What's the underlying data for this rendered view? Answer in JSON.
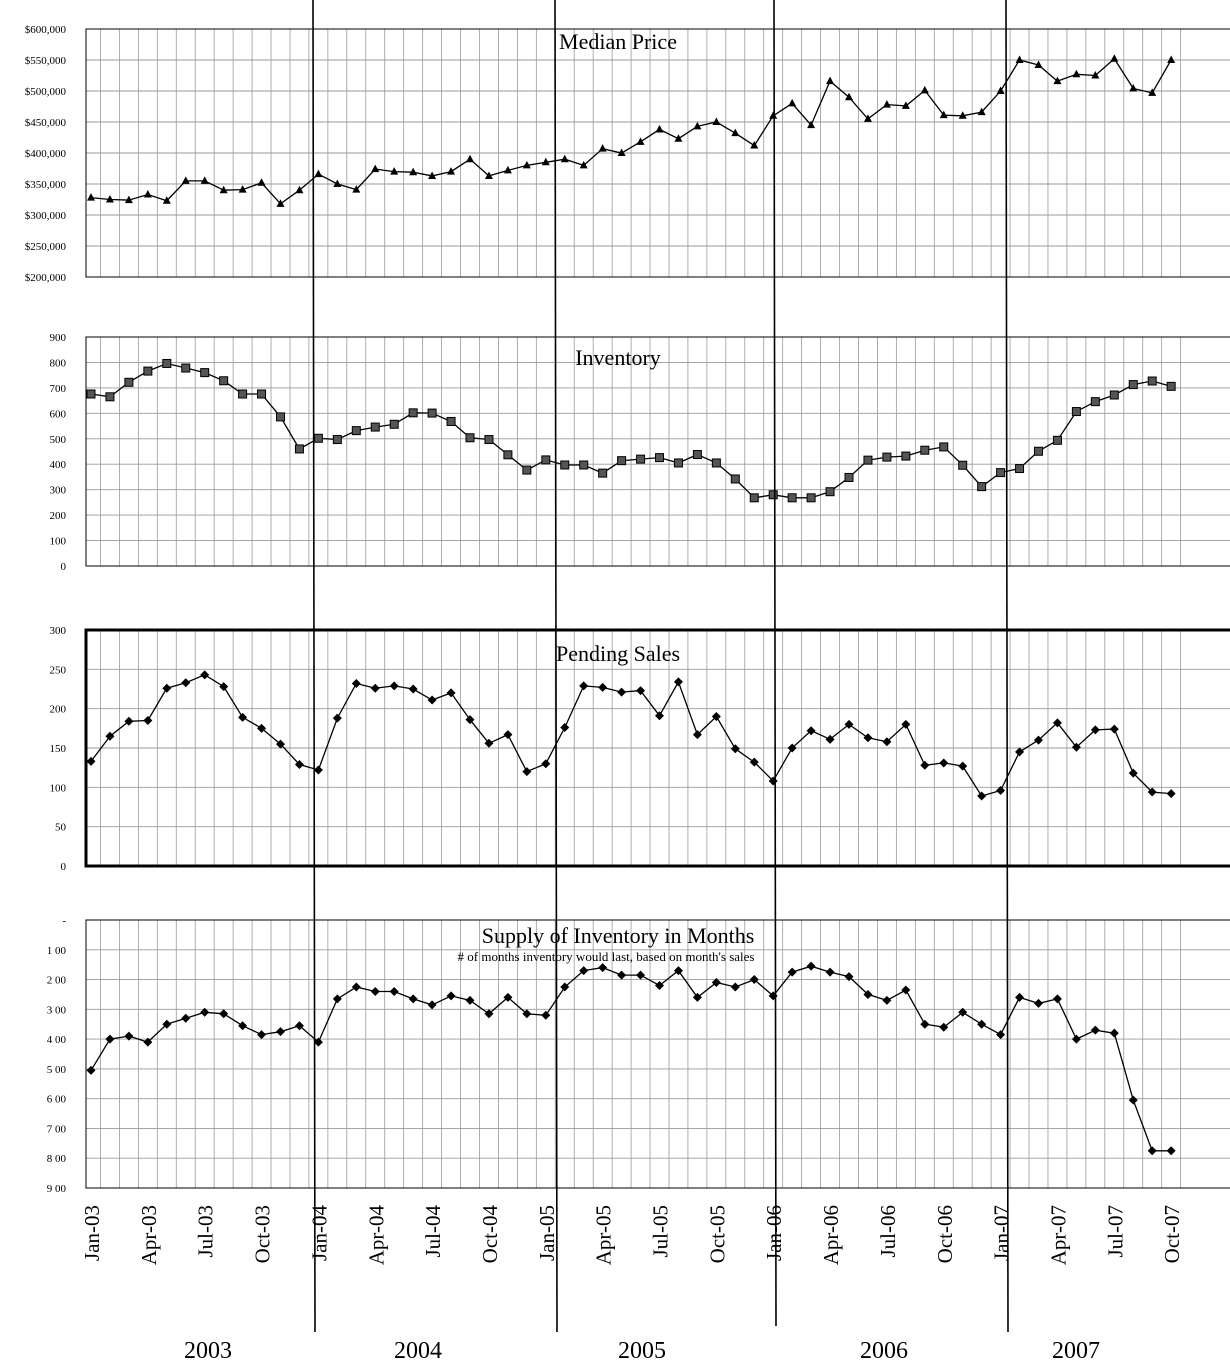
{
  "chart_data": [
    {
      "type": "line",
      "title": "Median Price",
      "marker": "triangle",
      "ylim": [
        200000,
        600000
      ],
      "yticks": [
        "$200,000",
        "$250,000",
        "$300,000",
        "$350,000",
        "$400,000",
        "$450,000",
        "$500,000",
        "$550,000",
        "$600,000"
      ],
      "grid": true,
      "series": [
        {
          "values": [
            328000,
            325000,
            324000,
            333000,
            323000,
            355000,
            355000,
            340000,
            341000,
            352000,
            318000,
            340000,
            366000,
            350000,
            341000,
            374000,
            370000,
            369000,
            363000,
            370000,
            390000,
            363000,
            372000,
            380000,
            385000,
            390000,
            380000,
            407000,
            400000,
            418000,
            438000,
            423000,
            443000,
            450000,
            432000,
            412000,
            460000,
            480000,
            445000,
            516000,
            490000,
            455000,
            478000,
            476000,
            501000,
            461000,
            460000,
            466000,
            500000,
            550000,
            542000,
            516000,
            527000,
            525000,
            552000,
            504000,
            497000,
            550000
          ]
        }
      ]
    },
    {
      "type": "line",
      "title": "Inventory",
      "marker": "square",
      "ylim": [
        0,
        900
      ],
      "yticks": [
        "0",
        "100",
        "200",
        "300",
        "400",
        "500",
        "600",
        "700",
        "800",
        "900"
      ],
      "grid": true,
      "series": [
        {
          "values": [
            676,
            665,
            722,
            766,
            796,
            778,
            760,
            728,
            676,
            676,
            586,
            460,
            502,
            497,
            532,
            546,
            557,
            602,
            601,
            568,
            504,
            497,
            437,
            377,
            417,
            397,
            397,
            365,
            414,
            420,
            426,
            405,
            438,
            405,
            342,
            268,
            280,
            268,
            268,
            292,
            348,
            416,
            428,
            432,
            455,
            468,
            396,
            312,
            367,
            383,
            451,
            494,
            607,
            646,
            672,
            713,
            727,
            706
          ]
        }
      ]
    },
    {
      "type": "line",
      "title": "Pending Sales",
      "marker": "diamond",
      "ylim": [
        0,
        300
      ],
      "yticks": [
        "0",
        "50",
        "100",
        "150",
        "200",
        "250",
        "300"
      ],
      "grid": true,
      "series": [
        {
          "values": [
            133,
            165,
            184,
            185,
            226,
            233,
            243,
            228,
            189,
            175,
            155,
            129,
            122,
            188,
            232,
            226,
            229,
            225,
            211,
            220,
            186,
            156,
            167,
            120,
            130,
            176,
            229,
            227,
            221,
            223,
            191,
            234,
            167,
            190,
            149,
            132,
            108,
            150,
            172,
            161,
            180,
            163,
            158,
            180,
            128,
            131,
            127,
            89,
            96,
            145,
            160,
            182,
            151,
            173,
            174,
            118,
            94,
            92
          ]
        }
      ]
    },
    {
      "type": "line",
      "title": "Supply of Inventory in Months",
      "subtitle": "# of months inventory would last, based on month's sales",
      "marker": "diamond",
      "ylim": [
        0,
        9
      ],
      "inverted": true,
      "yticks": [
        "-",
        "1 00",
        "2 00",
        "3 00",
        "4 00",
        "5 00",
        "6 00",
        "7 00",
        "8 00",
        "9 00"
      ],
      "grid": true,
      "series": [
        {
          "values": [
            5.05,
            4.0,
            3.9,
            4.1,
            3.5,
            3.3,
            3.1,
            3.15,
            3.55,
            3.85,
            3.75,
            3.55,
            4.1,
            2.65,
            2.25,
            2.4,
            2.4,
            2.65,
            2.85,
            2.55,
            2.7,
            3.15,
            2.6,
            3.15,
            3.2,
            2.25,
            1.7,
            1.6,
            1.85,
            1.85,
            2.2,
            1.7,
            2.6,
            2.1,
            2.25,
            2.0,
            2.55,
            1.75,
            1.55,
            1.75,
            1.9,
            2.5,
            2.7,
            2.35,
            3.5,
            3.6,
            3.1,
            3.5,
            3.85,
            2.6,
            2.8,
            2.65,
            4.0,
            3.7,
            3.8,
            6.05,
            7.75,
            7.75
          ]
        }
      ]
    }
  ],
  "x_tick_labels": [
    "Jan-03",
    "Apr-03",
    "Jul-03",
    "Oct-03",
    "Jan-04",
    "Apr-04",
    "Jul-04",
    "Oct-04",
    "Jan-05",
    "Apr-05",
    "Jul-05",
    "Oct-05",
    "Jan-06",
    "Apr-06",
    "Jul-06",
    "Oct-06",
    "Jan-07",
    "Apr-07",
    "Jul-07",
    "Oct-07"
  ],
  "year_labels": [
    "2003",
    "2004",
    "2005",
    "2006",
    "2007"
  ],
  "colors": {
    "line": "#000000",
    "grid": "#9a9a9a",
    "divider": "#000000"
  }
}
